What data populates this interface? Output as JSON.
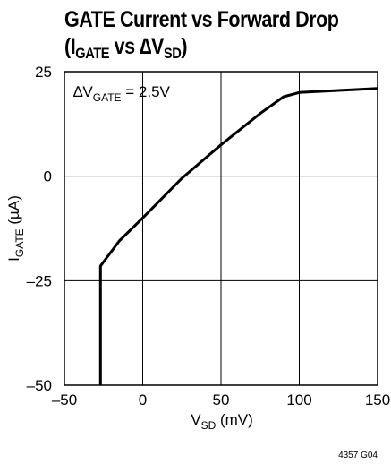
{
  "title": {
    "line1": "GATE Current vs Forward Drop",
    "line2_open": "(I",
    "line2_sub1": "GATE",
    "line2_mid": " vs ∆V",
    "line2_sub2": "SD",
    "line2_close": ")"
  },
  "chart_data": {
    "type": "line",
    "title": "GATE Current vs Forward Drop (IGATE vs ∆VSD)",
    "xlabel": "VSD (mV)",
    "ylabel": "IGATE (µA)",
    "xlabel_parts": {
      "main": "V",
      "sub": "SD",
      "rest": " (mV)"
    },
    "ylabel_parts": {
      "main": "I",
      "sub": "GATE",
      "rest": " (µA)"
    },
    "xlim": [
      -50,
      150
    ],
    "ylim": [
      -50,
      25
    ],
    "x_ticks": [
      -50,
      0,
      50,
      100,
      150
    ],
    "y_ticks": [
      -50,
      -25,
      0,
      25
    ],
    "x_tick_labels": [
      "–50",
      "0",
      "50",
      "100",
      "150"
    ],
    "y_tick_labels": [
      "–50",
      "–25",
      "0",
      "25"
    ],
    "grid": true,
    "annotation": {
      "main": "∆V",
      "sub": "GATE",
      "rest": " = 2.5V"
    },
    "series": [
      {
        "x": [
          -27,
          -27,
          -15,
          0,
          25,
          50,
          75,
          90,
          100,
          125,
          150
        ],
        "y": [
          -50,
          -21.5,
          -15.5,
          -10,
          -0.5,
          7.5,
          15,
          19,
          20,
          20.5,
          21
        ]
      }
    ]
  },
  "figure_code": "4357 G04"
}
